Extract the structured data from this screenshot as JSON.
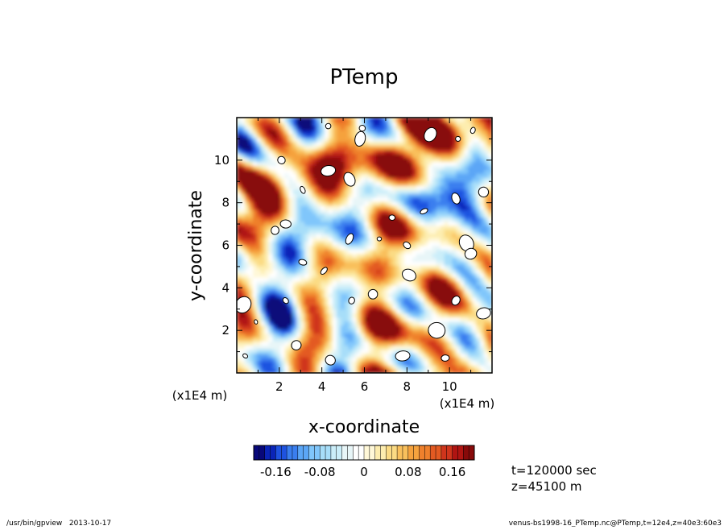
{
  "chart_data": {
    "type": "heatmap",
    "title": "PTemp",
    "xlabel": "x-coordinate",
    "ylabel": "y-coordinate",
    "xlim": [
      0,
      12
    ],
    "ylim": [
      0,
      12
    ],
    "x_ticks": [
      2,
      4,
      6,
      8,
      10
    ],
    "y_ticks": [
      2,
      4,
      6,
      8,
      10
    ],
    "x_tick_labels": [
      "2",
      "4",
      "6",
      "8",
      "10"
    ],
    "y_tick_labels": [
      "2",
      "4",
      "6",
      "8",
      "10"
    ],
    "x_unit_label": "(x1E4 m)",
    "y_unit_label": "(x1E4 m)",
    "colorbar": {
      "range": [
        -0.2,
        0.2
      ],
      "tick_values": [
        -0.16,
        -0.08,
        0,
        0.08,
        0.16
      ],
      "tick_labels": [
        "-0.16",
        "-0.08",
        "0",
        "0.08",
        "0.16"
      ],
      "colors": [
        "#08087a",
        "#0a24b8",
        "#1e52e0",
        "#3a7eef",
        "#5ba6f6",
        "#80c6fb",
        "#a7def9",
        "#cbeef9",
        "#e8f6f8",
        "#ffffff",
        "#fff8d8",
        "#fdedaf",
        "#fbdb84",
        "#f9c05c",
        "#f5a23e",
        "#ef802c",
        "#e35a22",
        "#cf351c",
        "#b01512",
        "#880a0a"
      ]
    },
    "annotations": [
      "t=120000 sec",
      "z=45100 m"
    ]
  },
  "footer": {
    "left": "/usr/bin/gpview   2013-10-17",
    "right": "venus-bs1998-16_PTemp.nc@PTemp,t=12e4,z=40e3:60e3"
  }
}
